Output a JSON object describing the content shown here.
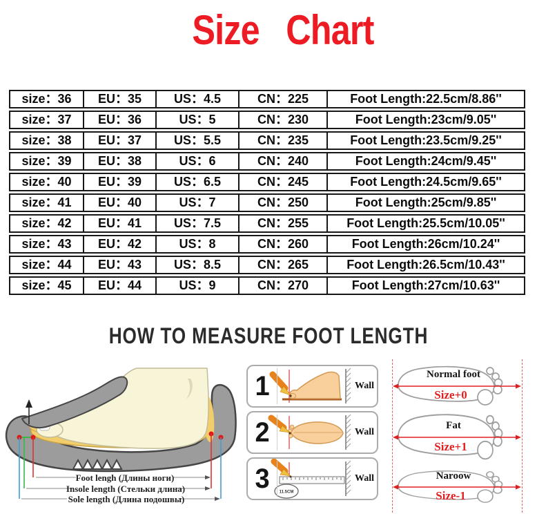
{
  "title": "Size Chart",
  "table": {
    "rows": [
      {
        "size": "size：36",
        "eu": "EU：35",
        "us": "US：4.5",
        "cn": "CN：225",
        "foot": "Foot Length:22.5cm/8.86''"
      },
      {
        "size": "size：37",
        "eu": "EU：36",
        "us": "US：5",
        "cn": "CN：230",
        "foot": "Foot Length:23cm/9.05''"
      },
      {
        "size": "size：38",
        "eu": "EU：37",
        "us": "US：5.5",
        "cn": "CN：235",
        "foot": "Foot Length:23.5cm/9.25''"
      },
      {
        "size": "size：39",
        "eu": "EU：38",
        "us": "US：6",
        "cn": "CN：240",
        "foot": "Foot Length:24cm/9.45''"
      },
      {
        "size": "size：40",
        "eu": "EU：39",
        "us": "US：6.5",
        "cn": "CN：245",
        "foot": "Foot Length:24.5cm/9.65''"
      },
      {
        "size": "size：41",
        "eu": "EU：40",
        "us": "US：7",
        "cn": "CN：250",
        "foot": "Foot Length:25cm/9.85''"
      },
      {
        "size": "size：42",
        "eu": "EU：41",
        "us": "US：7.5",
        "cn": "CN：255",
        "foot": "Foot Length:25.5cm/10.05''"
      },
      {
        "size": "size：43",
        "eu": "EU：42",
        "us": "US：8",
        "cn": "CN：260",
        "foot": "Foot Length:26cm/10.24''"
      },
      {
        "size": "size：44",
        "eu": "EU：43",
        "us": "US：8.5",
        "cn": "CN：265",
        "foot": "Foot Length:26.5cm/10.43''"
      },
      {
        "size": "size：45",
        "eu": "EU：44",
        "us": "US：9",
        "cn": "CN：270",
        "foot": "Foot Length:27cm/10.63''"
      }
    ]
  },
  "measure_heading": "HOW TO MEASURE FOOT LENGTH",
  "shoe_diagram": {
    "labels": [
      "Foot lengh (Длины ноги)",
      "Insole length (Стельки длина)",
      "Sole length (Длина подошвы)"
    ]
  },
  "steps": [
    {
      "number": "1",
      "wall_label": "Wall"
    },
    {
      "number": "2",
      "wall_label": "Wall"
    },
    {
      "number": "3",
      "wall_label": "Wall",
      "ruler_note": "11.5CM"
    }
  ],
  "foot_types": [
    {
      "name": "Normal foot",
      "size_note": "Size+0"
    },
    {
      "name": "Fat",
      "size_note": "Size+1"
    },
    {
      "name": "Naroow",
      "size_note": "Size-1"
    }
  ],
  "colors": {
    "title_red": "#ed1c24",
    "heading_black": "#2b2b2b",
    "measure_line_red": "#e02020",
    "pencil_orange": "#e8821c",
    "insole_yellow": "#f2cd6b",
    "shoe_grey": "#9c9c9c"
  }
}
